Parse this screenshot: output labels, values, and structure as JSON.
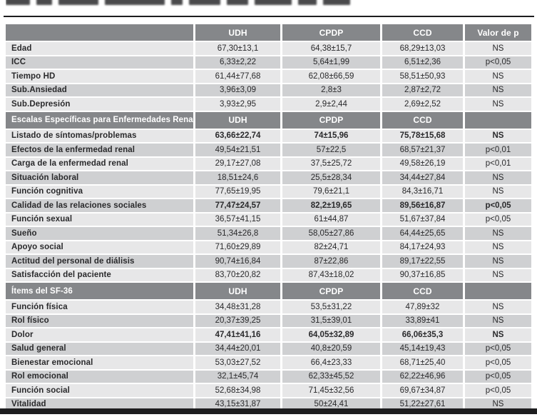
{
  "table": {
    "p_column_title": "Valor de p",
    "group_columns": [
      "UDH",
      "CPDP",
      "CCD"
    ],
    "sections": [
      {
        "title": "",
        "columns": [
          "UDH",
          "CPDP",
          "CCD",
          "Valor de p"
        ],
        "rows": [
          {
            "label": "Edad",
            "udh": "67,30±13,1",
            "cpdp": "64,38±15,7",
            "ccd": "68,29±13,03",
            "p": "NS",
            "bold": false
          },
          {
            "label": "ICC",
            "udh": "6,33±2,22",
            "cpdp": "5,64±1,99",
            "ccd": "6,51±2,36",
            "p": "p<0,05",
            "bold": false
          },
          {
            "label": "Tiempo HD",
            "udh": "61,44±77,68",
            "cpdp": "62,08±66,59",
            "ccd": "58,51±50,93",
            "p": "NS",
            "bold": false
          },
          {
            "label": "Sub.Ansiedad",
            "udh": "3,96±3,09",
            "cpdp": "2,8±3",
            "ccd": "2,87±2,72",
            "p": "NS",
            "bold": false
          },
          {
            "label": "Sub.Depresión",
            "udh": "3,93±2,95",
            "cpdp": "2,9±2,44",
            "ccd": "2,69±2,52",
            "p": "NS",
            "bold": false
          }
        ]
      },
      {
        "title": "Escalas Específicas para Enfermedades Renales",
        "columns": [
          "UDH",
          "CPDP",
          "CCD",
          ""
        ],
        "rows": [
          {
            "label": "Listado de síntomas/problemas",
            "udh": "63,66±22,74",
            "cpdp": "74±15,96",
            "ccd": "75,78±15,68",
            "p": "NS",
            "bold": true
          },
          {
            "label": "Efectos de la enfermedad renal",
            "udh": "49,54±21,51",
            "cpdp": "57±22,5",
            "ccd": "68,57±21,37",
            "p": "p<0,01",
            "bold": false
          },
          {
            "label": "Carga de la enfermedad renal",
            "udh": "29,17±27,08",
            "cpdp": "37,5±25,72",
            "ccd": "49,58±26,19",
            "p": "p<0,01",
            "bold": false
          },
          {
            "label": "Situación laboral",
            "udh": "18,51±24,6",
            "cpdp": "25,5±28,34",
            "ccd": "34,44±27,84",
            "p": "NS",
            "bold": false
          },
          {
            "label": "Función cognitiva",
            "udh": "77,65±19,95",
            "cpdp": "79,6±21,1",
            "ccd": "84,3±16,71",
            "p": "NS",
            "bold": false
          },
          {
            "label": "Calidad de las relaciones sociales",
            "udh": "77,47±24,57",
            "cpdp": "82,2±19,65",
            "ccd": "89,56±16,87",
            "p": "p<0,05",
            "bold": true
          },
          {
            "label": "Función sexual",
            "udh": "36,57±41,15",
            "cpdp": "61±44,87",
            "ccd": "51,67±37,84",
            "p": "p<0,05",
            "bold": false
          },
          {
            "label": "Sueño",
            "udh": "51,34±26,8",
            "cpdp": "58,05±27,86",
            "ccd": "64,44±25,65",
            "p": "NS",
            "bold": false
          },
          {
            "label": "Apoyo social",
            "udh": "71,60±29,89",
            "cpdp": "82±24,71",
            "ccd": "84,17±24,93",
            "p": "NS",
            "bold": false
          },
          {
            "label": "Actitud del personal de diálisis",
            "udh": "90,74±16,84",
            "cpdp": "87±22,86",
            "ccd": "89,17±22,55",
            "p": "NS",
            "bold": false
          },
          {
            "label": "Satisfacción del paciente",
            "udh": "83,70±20,82",
            "cpdp": "87,43±18,02",
            "ccd": "90,37±16,85",
            "p": "NS",
            "bold": false
          }
        ]
      },
      {
        "title": "Ítems del SF-36",
        "columns": [
          "UDH",
          "CPDP",
          "CCD",
          ""
        ],
        "rows": [
          {
            "label": "Función física",
            "udh": "34,48±31,28",
            "cpdp": "53,5±31,22",
            "ccd": "47,89±32",
            "p": "NS",
            "bold": false
          },
          {
            "label": "Rol físico",
            "udh": "20,37±39,25",
            "cpdp": "31,5±39,01",
            "ccd": "33,89±41",
            "p": "NS",
            "bold": false
          },
          {
            "label": "Dolor",
            "udh": "47,41±41,16",
            "cpdp": "64,05±32,89",
            "ccd": "66,06±35,3",
            "p": "NS",
            "bold": true
          },
          {
            "label": "Salud general",
            "udh": "34,44±20,01",
            "cpdp": "40,8±20,59",
            "ccd": "45,14±19,43",
            "p": "p<0,05",
            "bold": false
          },
          {
            "label": "Bienestar emocional",
            "udh": "53,03±27,52",
            "cpdp": "66,4±23,33",
            "ccd": "68,71±25,40",
            "p": "p<0,05",
            "bold": false
          },
          {
            "label": "Rol emocional",
            "udh": "32,1±45,74",
            "cpdp": "62,33±45,52",
            "ccd": "62,22±46,96",
            "p": "p<0,05",
            "bold": false
          },
          {
            "label": "Función social",
            "udh": "52,68±34,98",
            "cpdp": "71,45±32,56",
            "ccd": "69,67±34,87",
            "p": "p<0,05",
            "bold": false
          },
          {
            "label": "Vitalidad",
            "udh": "43,15±31,87",
            "cpdp": "50±24,41",
            "ccd": "51,22±27,61",
            "p": "NS",
            "bold": false
          }
        ]
      }
    ],
    "colors": {
      "header_bg": "#85878a",
      "row_light": "#e7e7e8",
      "row_dark": "#cfd0d2",
      "rule_black": "#1d1d1f",
      "text": "#2a2a2c"
    }
  }
}
